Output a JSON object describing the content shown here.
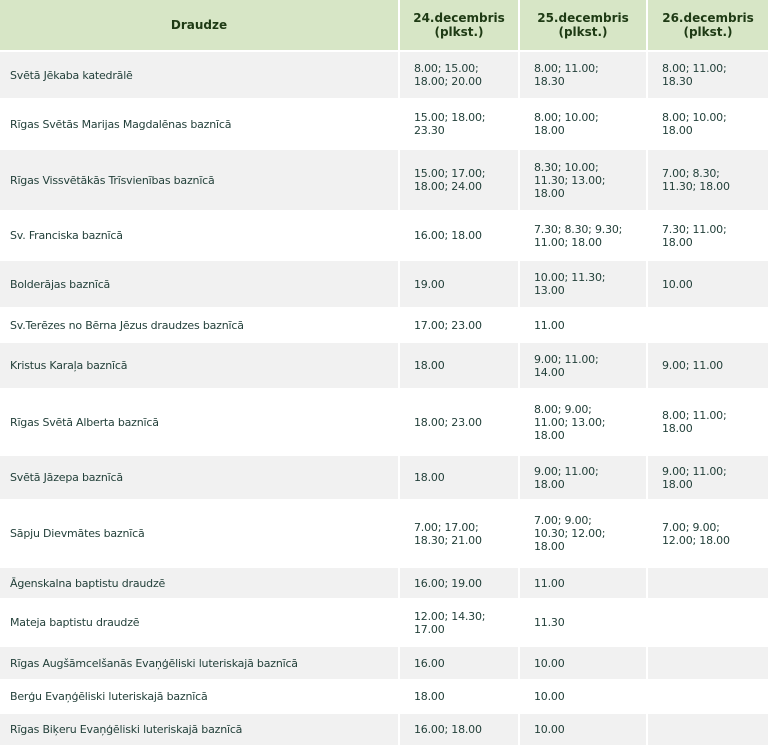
{
  "headers": [
    "Draudze",
    "24.decembris\n(plkst.)",
    "25.decembris\n(plkst.)",
    "26.decembris\n(plkst.)"
  ],
  "rows": [
    {
      "name": "Svētā Jēkaba katedrālē",
      "d24": "8.00; 15.00;\n18.00; 20.00",
      "d25": "8.00; 11.00;\n18.30",
      "d26": "8.00; 11.00;\n18.30"
    },
    {
      "name": "Rīgas Svētās Marijas Magdalēnas baznīcā",
      "d24": "15.00; 18.00;\n23.30",
      "d25": "8.00; 10.00;\n18.00",
      "d26": "8.00; 10.00;\n18.00"
    },
    {
      "name": "Rīgas Vissvētākās Trīsvienības baznīcā",
      "d24": "15.00; 17.00;\n18.00; 24.00",
      "d25": "8.30; 10.00;\n11.30; 13.00;\n18.00",
      "d26": "7.00; 8.30;\n11.30; 18.00"
    },
    {
      "name": "Sv. Franciska baznīcā",
      "d24": "16.00; 18.00",
      "d25": "7.30; 8.30; 9.30;\n11.00; 18.00",
      "d26": "7.30; 11.00;\n18.00"
    },
    {
      "name": "Bolderājas baznīcā",
      "d24": "19.00",
      "d25": "10.00; 11.30;\n13.00",
      "d26": "10.00"
    },
    {
      "name": "Sv.Terēzes no Bērna Jēzus draudzes baznīcā",
      "d24": "17.00; 23.00",
      "d25": "11.00",
      "d26": ""
    },
    {
      "name": "Kristus Karaļa baznīcā",
      "d24": "18.00",
      "d25": "9.00; 11.00;\n14.00",
      "d26": "9.00; 11.00"
    },
    {
      "name": "Rīgas Svētā Alberta baznīcā",
      "d24": "18.00; 23.00",
      "d25": "8.00; 9.00;\n11.00; 13.00;\n18.00",
      "d26": "8.00; 11.00;\n18.00"
    },
    {
      "name": "Svētā Jāzepa baznīcā",
      "d24": "18.00",
      "d25": "9.00; 11.00;\n18.00",
      "d26": "9.00; 11.00;\n18.00"
    },
    {
      "name": "Sāpju Dievmātes baznīcā",
      "d24": "7.00; 17.00;\n18.30; 21.00",
      "d25": "7.00; 9.00;\n10.30; 12.00;\n18.00",
      "d26": "7.00; 9.00;\n12.00; 18.00"
    },
    {
      "name": "Āgenskalna baptistu draudzē",
      "d24": "16.00; 19.00",
      "d25": "11.00",
      "d26": ""
    },
    {
      "name": "Mateja baptistu draudzē",
      "d24": "12.00; 14.30;\n17.00",
      "d25": "11.30",
      "d26": ""
    },
    {
      "name": "Rīgas Augšāmcelšanās Evaņģēliski luteriskajā baznīcā",
      "d24": "16.00",
      "d25": "10.00",
      "d26": ""
    },
    {
      "name": "Berģu Evaņģēliski luteriskajā baznīcā",
      "d24": "18.00",
      "d25": "10.00",
      "d26": ""
    },
    {
      "name": "Rīgas Biķeru Evaņģēliski luteriskajā baznīcā",
      "d24": "16.00; 18.00",
      "d25": "10.00",
      "d26": ""
    }
  ]
}
